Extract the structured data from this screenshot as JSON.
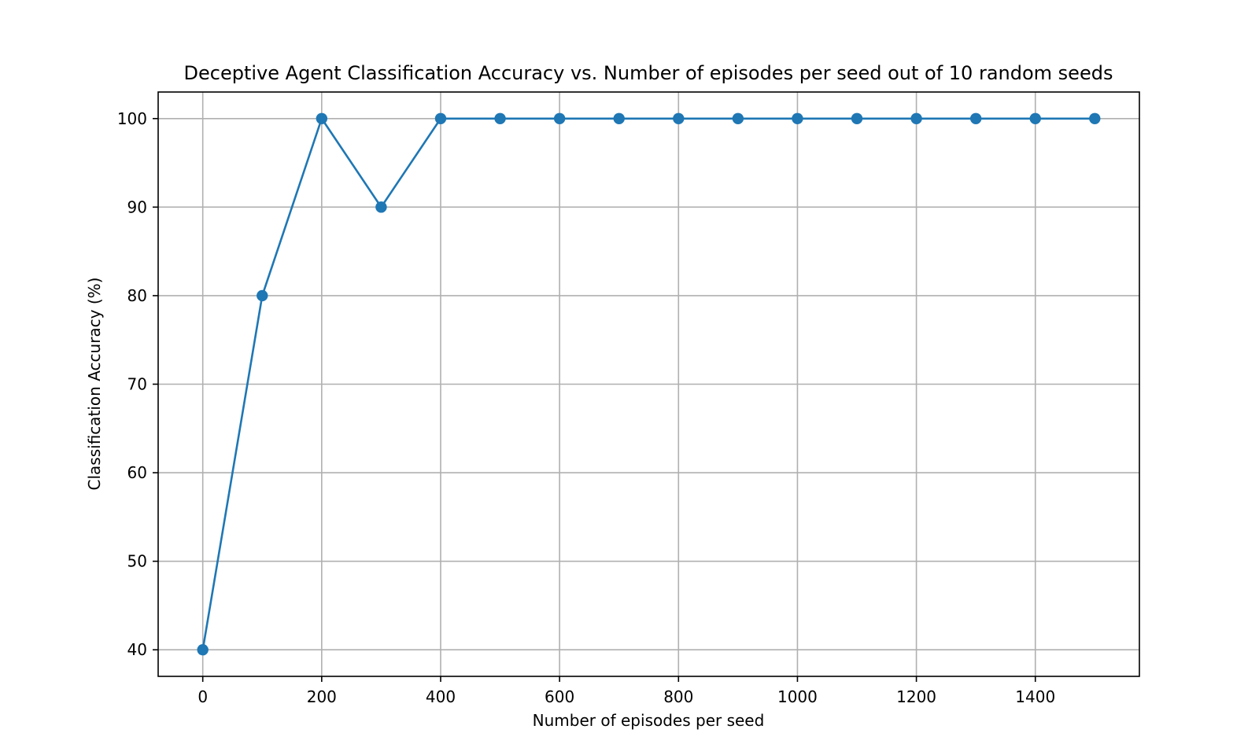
{
  "chart_data": {
    "type": "line",
    "title": "Deceptive Agent Classification Accuracy vs. Number of episodes per seed out of 10 random seeds",
    "xlabel": "Number of episodes per seed",
    "ylabel": "Classification Accuracy (%)",
    "x": [
      0,
      100,
      200,
      300,
      400,
      500,
      600,
      700,
      800,
      900,
      1000,
      1100,
      1200,
      1300,
      1400,
      1500
    ],
    "series": [
      {
        "values": [
          40,
          80,
          100,
          90,
          100,
          100,
          100,
          100,
          100,
          100,
          100,
          100,
          100,
          100,
          100,
          100
        ],
        "color": "#1f77b4",
        "marker": "circle"
      }
    ],
    "xticks": [
      0,
      200,
      400,
      600,
      800,
      1000,
      1200,
      1400
    ],
    "yticks": [
      40,
      50,
      60,
      70,
      80,
      90,
      100
    ],
    "xlim": [
      -75,
      1575
    ],
    "ylim": [
      37,
      103
    ],
    "grid": true,
    "legend": false
  }
}
